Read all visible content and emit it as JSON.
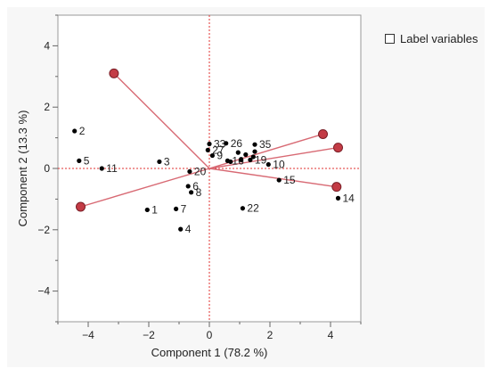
{
  "controls": {
    "label_variables": "Label variables"
  },
  "colors": {
    "grid_zero": "#e0302f",
    "vector": "#d86a74",
    "vector_tip": "#c33b45",
    "point": "#000000"
  },
  "chart_data": {
    "type": "scatter",
    "xlabel": "Component 1 (78.2 %)",
    "ylabel": "Component 2 (13.3 %)",
    "xlim": [
      -5,
      5
    ],
    "ylim": [
      -5,
      5
    ],
    "xticks": [
      -4,
      -2,
      0,
      2,
      4
    ],
    "yticks": [
      -4,
      -2,
      0,
      2,
      4
    ],
    "zero_lines": true,
    "points": [
      {
        "label": "1",
        "x": -2.05,
        "y": -1.35
      },
      {
        "label": "2",
        "x": -4.45,
        "y": 1.22
      },
      {
        "label": "3",
        "x": -1.65,
        "y": 0.22
      },
      {
        "label": "4",
        "x": -0.95,
        "y": -1.98
      },
      {
        "label": "5",
        "x": -4.3,
        "y": 0.25
      },
      {
        "label": "6",
        "x": -0.7,
        "y": -0.58
      },
      {
        "label": "7",
        "x": -1.1,
        "y": -1.32
      },
      {
        "label": "8",
        "x": -0.6,
        "y": -0.78
      },
      {
        "label": "9",
        "x": 0.1,
        "y": 0.42
      },
      {
        "label": "10",
        "x": 1.95,
        "y": 0.13
      },
      {
        "label": "11",
        "x": -3.55,
        "y": 0.0
      },
      {
        "label": "14",
        "x": 4.25,
        "y": -0.97
      },
      {
        "label": "15",
        "x": 2.3,
        "y": -0.38
      },
      {
        "label": "16",
        "x": 0.6,
        "y": 0.25
      },
      {
        "label": "19",
        "x": 1.35,
        "y": 0.28
      },
      {
        "label": "20",
        "x": -0.65,
        "y": -0.1
      },
      {
        "label": "22",
        "x": 1.1,
        "y": -1.3
      },
      {
        "label": "26",
        "x": 0.55,
        "y": 0.82
      },
      {
        "label": "27",
        "x": -0.05,
        "y": 0.6
      },
      {
        "label": "33",
        "x": 0.0,
        "y": 0.8
      },
      {
        "label": "35",
        "x": 1.5,
        "y": 0.78
      },
      {
        "label": "",
        "x": 0.95,
        "y": 0.52
      },
      {
        "label": "",
        "x": 1.05,
        "y": 0.28
      },
      {
        "label": "",
        "x": 0.7,
        "y": 0.22
      },
      {
        "label": "",
        "x": 1.5,
        "y": 0.55
      },
      {
        "label": "",
        "x": 1.2,
        "y": 0.45
      },
      {
        "label": "",
        "x": 1.45,
        "y": 0.38
      }
    ],
    "vectors": [
      {
        "x": -3.15,
        "y": 3.1
      },
      {
        "x": 3.75,
        "y": 1.12
      },
      {
        "x": 4.25,
        "y": 0.68
      },
      {
        "x": 4.2,
        "y": -0.6
      },
      {
        "x": -4.25,
        "y": -1.25
      }
    ]
  }
}
